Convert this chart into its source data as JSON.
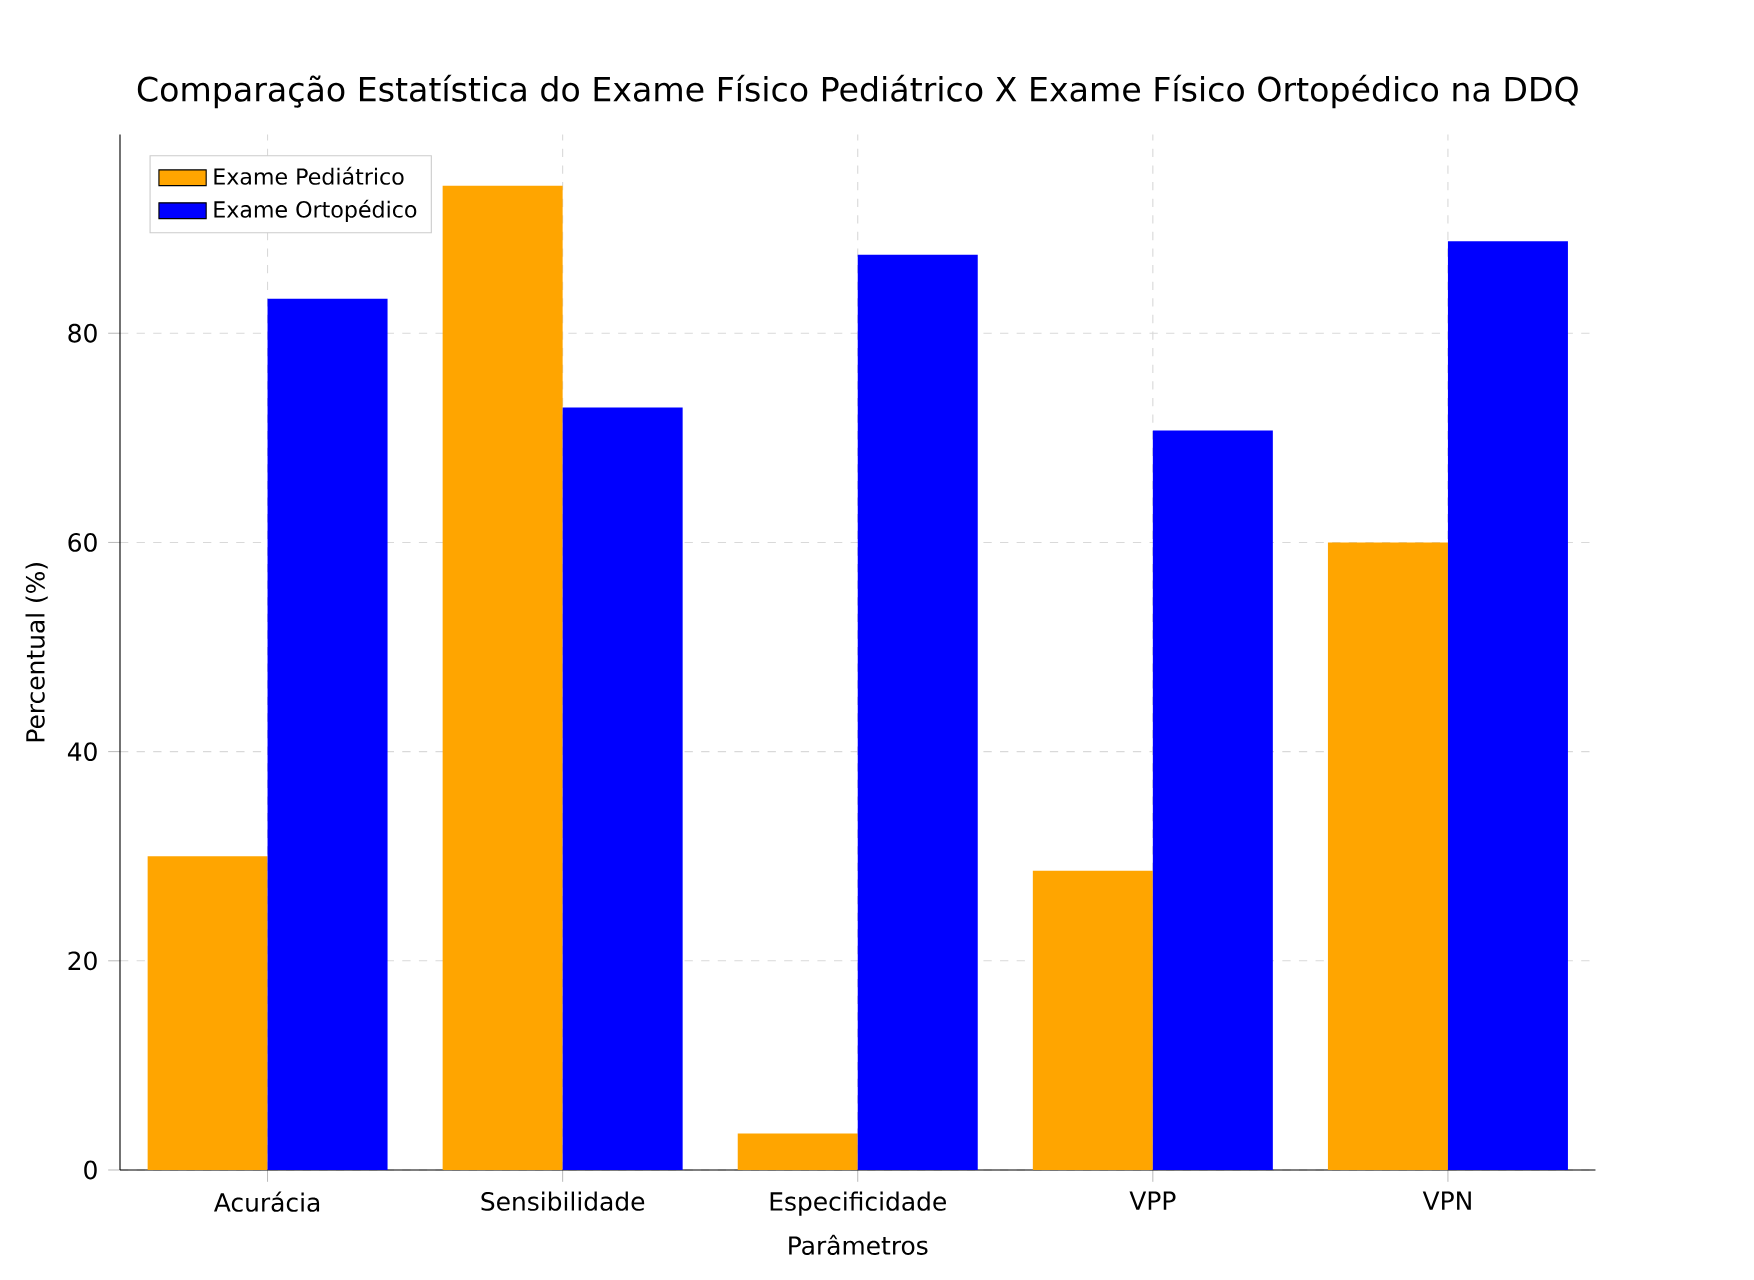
{
  "chart_data": {
    "type": "bar",
    "title": "Comparação Estatística do Exame Físico Pediátrico X Exame Físico Ortopédico na DDQ",
    "xlabel": "Parâmetros",
    "ylabel": "Percentual (%)",
    "categories": [
      "Acurácia",
      "Sensibilidade",
      "Especificidade",
      "VPP",
      "VPN"
    ],
    "series": [
      {
        "name": "Exame Pediátrico",
        "color": "#ffa500",
        "values": [
          30,
          94.1,
          3.5,
          28.6,
          60
        ]
      },
      {
        "name": "Exame Ortopédico",
        "color": "#0000ff",
        "values": [
          83.3,
          72.9,
          87.5,
          70.7,
          88.8
        ]
      }
    ],
    "ylim": [
      0,
      99
    ],
    "yticks": [
      0,
      20,
      40,
      60,
      80
    ],
    "grid": true,
    "legend": "top left"
  }
}
